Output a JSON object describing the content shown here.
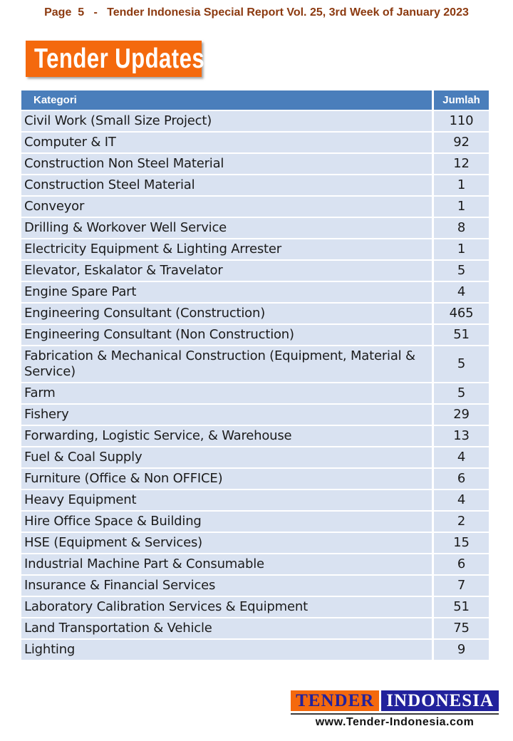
{
  "page_header": {
    "text": "Page  5   -   Tender Indonesia Special Report Vol. 25, 3rd Week of January 2023"
  },
  "banner": {
    "title": "Tender Updates"
  },
  "table": {
    "headers": {
      "kategori": "Kategori",
      "jumlah": "Jumlah"
    },
    "rows": [
      {
        "kategori": "Civil Work (Small Size Project)",
        "jumlah": "110"
      },
      {
        "kategori": "Computer & IT",
        "jumlah": "92"
      },
      {
        "kategori": "Construction Non Steel Material",
        "jumlah": "12"
      },
      {
        "kategori": "Construction Steel Material",
        "jumlah": "1"
      },
      {
        "kategori": "Conveyor",
        "jumlah": "1"
      },
      {
        "kategori": "Drilling & Workover Well Service",
        "jumlah": "8"
      },
      {
        "kategori": "Electricity Equipment & Lighting Arrester",
        "jumlah": "1"
      },
      {
        "kategori": "Elevator, Eskalator & Travelator",
        "jumlah": "5"
      },
      {
        "kategori": "Engine Spare Part",
        "jumlah": "4"
      },
      {
        "kategori": "Engineering Consultant (Construction)",
        "jumlah": "465"
      },
      {
        "kategori": "Engineering Consultant (Non Construction)",
        "jumlah": "51"
      },
      {
        "kategori": "Fabrication & Mechanical Construction (Equipment, Material & Service)",
        "jumlah": "5"
      },
      {
        "kategori": "Farm",
        "jumlah": "5"
      },
      {
        "kategori": "Fishery",
        "jumlah": "29"
      },
      {
        "kategori": "Forwarding, Logistic Service, & Warehouse",
        "jumlah": "13"
      },
      {
        "kategori": "Fuel & Coal Supply",
        "jumlah": "4"
      },
      {
        "kategori": "Furniture (Office & Non OFFICE)",
        "jumlah": "6"
      },
      {
        "kategori": "Heavy Equipment",
        "jumlah": "4"
      },
      {
        "kategori": "Hire Office Space & Building",
        "jumlah": "2"
      },
      {
        "kategori": "HSE (Equipment & Services)",
        "jumlah": "15"
      },
      {
        "kategori": "Industrial Machine Part & Consumable",
        "jumlah": "6"
      },
      {
        "kategori": "Insurance & Financial Services",
        "jumlah": "7"
      },
      {
        "kategori": "Laboratory Calibration Services & Equipment",
        "jumlah": "51"
      },
      {
        "kategori": "Land Transportation & Vehicle",
        "jumlah": "75"
      },
      {
        "kategori": "Lighting",
        "jumlah": "9"
      }
    ]
  },
  "footer": {
    "logo": {
      "left": "TENDER",
      "right": "INDONESIA"
    },
    "website": "www.Tender-Indonesia.com"
  },
  "colors": {
    "header_text": "#8C3A10",
    "banner_orange": "#F4690D",
    "table_header_blue": "#4A7EBB",
    "row_blue": "#D9E2F1",
    "logo_orange": "#F4690D",
    "logo_navy": "#22229C"
  }
}
